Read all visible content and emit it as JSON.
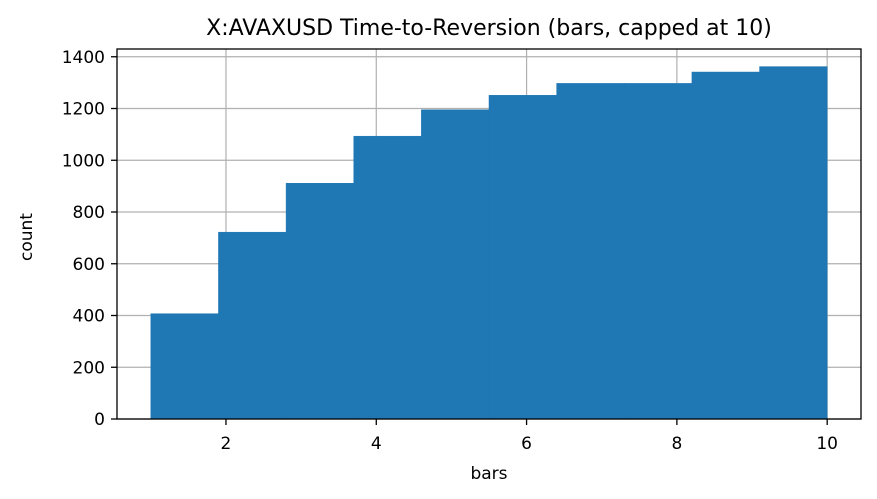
{
  "chart_data": {
    "type": "bar",
    "title": "X:AVAXUSD Time-to-Reversion (bars, capped at 10)",
    "xlabel": "bars",
    "ylabel": "count",
    "bin_edges": [
      1.0,
      1.9,
      2.8,
      3.7,
      4.6,
      5.5,
      6.4,
      7.3,
      8.2,
      9.1,
      10.0
    ],
    "values": [
      407,
      722,
      911,
      1093,
      1195,
      1251,
      1297,
      1297,
      1341,
      1362
    ],
    "xlim": [
      0.55,
      10.45
    ],
    "ylim": [
      0,
      1430
    ],
    "x_ticks": [
      2,
      4,
      6,
      8,
      10
    ],
    "y_ticks": [
      0,
      200,
      400,
      600,
      800,
      1000,
      1200,
      1400
    ],
    "grid": true,
    "bar_color": "#1f77b4",
    "grid_color": "#b0b0b0"
  }
}
